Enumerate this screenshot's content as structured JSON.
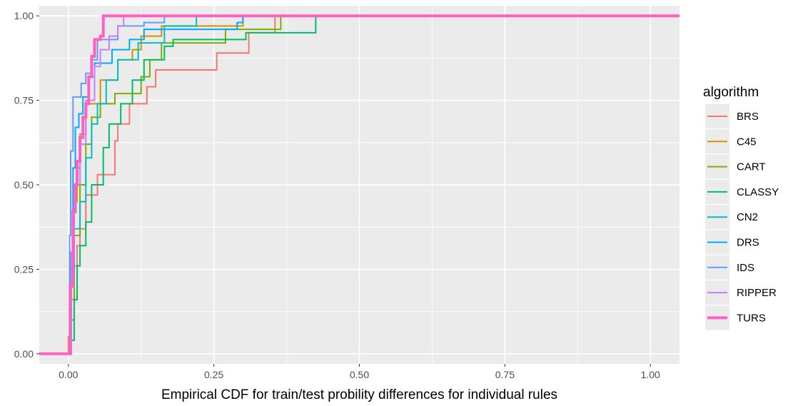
{
  "chart_data": {
    "type": "line",
    "subtype": "step-ecdf",
    "title": "",
    "xlabel": "Empirical CDF for train/test probility differences for individual rules",
    "ylabel": "",
    "xlim": [
      -0.05,
      1.05
    ],
    "ylim": [
      -0.03,
      1.03
    ],
    "xticks": [
      0,
      0.25,
      0.5,
      0.75,
      1
    ],
    "xtick_labels": [
      "0.00",
      "0.25",
      "0.50",
      "0.75",
      "1.00"
    ],
    "yticks": [
      0,
      0.25,
      0.5,
      0.75,
      1
    ],
    "ytick_labels": [
      "0.00",
      "0.25",
      "0.50",
      "0.75",
      "1.00"
    ],
    "grid": true,
    "background": "#ebebeb",
    "legend": {
      "title": "algorithm",
      "placement": "right"
    },
    "series": [
      {
        "name": "BRS",
        "color": "#F8766D",
        "points": [
          [
            -0.05,
            0
          ],
          [
            0,
            0
          ],
          [
            0,
            0.05
          ],
          [
            0.005,
            0.16
          ],
          [
            0.01,
            0.26
          ],
          [
            0.015,
            0.32
          ],
          [
            0.02,
            0.37
          ],
          [
            0.03,
            0.47
          ],
          [
            0.05,
            0.53
          ],
          [
            0.08,
            0.63
          ],
          [
            0.085,
            0.68
          ],
          [
            0.105,
            0.74
          ],
          [
            0.135,
            0.79
          ],
          [
            0.15,
            0.84
          ],
          [
            0.255,
            0.89
          ],
          [
            0.31,
            0.95
          ],
          [
            0.355,
            1
          ],
          [
            1.05,
            1
          ]
        ]
      },
      {
        "name": "C45",
        "color": "#CD9600",
        "points": [
          [
            -0.05,
            0
          ],
          [
            0,
            0
          ],
          [
            0.005,
            0.3
          ],
          [
            0.01,
            0.45
          ],
          [
            0.015,
            0.55
          ],
          [
            0.02,
            0.65
          ],
          [
            0.03,
            0.74
          ],
          [
            0.055,
            0.81
          ],
          [
            0.085,
            0.87
          ],
          [
            0.11,
            0.9
          ],
          [
            0.125,
            0.94
          ],
          [
            0.16,
            0.97
          ],
          [
            0.26,
            0.97
          ],
          [
            0.3,
            1
          ],
          [
            1.05,
            1
          ]
        ]
      },
      {
        "name": "CART",
        "color": "#7CAE00",
        "points": [
          [
            -0.05,
            0
          ],
          [
            0,
            0
          ],
          [
            0.005,
            0.1
          ],
          [
            0.01,
            0.35
          ],
          [
            0.02,
            0.5
          ],
          [
            0.03,
            0.62
          ],
          [
            0.04,
            0.7
          ],
          [
            0.055,
            0.74
          ],
          [
            0.08,
            0.77
          ],
          [
            0.125,
            0.82
          ],
          [
            0.14,
            0.87
          ],
          [
            0.16,
            0.92
          ],
          [
            0.27,
            0.96
          ],
          [
            0.365,
            1
          ],
          [
            1.05,
            1
          ]
        ]
      },
      {
        "name": "CLASSY",
        "color": "#00BE67",
        "points": [
          [
            -0.05,
            0
          ],
          [
            0,
            0
          ],
          [
            0.005,
            0.04
          ],
          [
            0.01,
            0.16
          ],
          [
            0.015,
            0.26
          ],
          [
            0.02,
            0.32
          ],
          [
            0.03,
            0.39
          ],
          [
            0.04,
            0.5
          ],
          [
            0.06,
            0.61
          ],
          [
            0.07,
            0.68
          ],
          [
            0.09,
            0.74
          ],
          [
            0.11,
            0.81
          ],
          [
            0.13,
            0.87
          ],
          [
            0.165,
            0.91
          ],
          [
            0.18,
            0.93
          ],
          [
            0.305,
            0.95
          ],
          [
            0.425,
            1
          ],
          [
            1.05,
            1
          ]
        ]
      },
      {
        "name": "CN2",
        "color": "#00BFC4",
        "points": [
          [
            -0.05,
            0
          ],
          [
            0,
            0
          ],
          [
            0.005,
            0.23
          ],
          [
            0.01,
            0.37
          ],
          [
            0.02,
            0.45
          ],
          [
            0.03,
            0.58
          ],
          [
            0.04,
            0.68
          ],
          [
            0.05,
            0.74
          ],
          [
            0.065,
            0.81
          ],
          [
            0.085,
            0.87
          ],
          [
            0.12,
            0.92
          ],
          [
            0.165,
            0.97
          ],
          [
            0.22,
            1
          ],
          [
            1.05,
            1
          ]
        ]
      },
      {
        "name": "DRS",
        "color": "#00A9FF",
        "points": [
          [
            -0.05,
            0
          ],
          [
            0,
            0
          ],
          [
            0.003,
            0.3
          ],
          [
            0.008,
            0.55
          ],
          [
            0.012,
            0.67
          ],
          [
            0.018,
            0.71
          ],
          [
            0.025,
            0.76
          ],
          [
            0.035,
            0.82
          ],
          [
            0.045,
            0.86
          ],
          [
            0.075,
            0.9
          ],
          [
            0.105,
            0.93
          ],
          [
            0.13,
            0.96
          ],
          [
            0.29,
            0.98
          ],
          [
            0.3,
            1
          ],
          [
            1.05,
            1
          ]
        ]
      },
      {
        "name": "IDS",
        "color": "#619CFF",
        "points": [
          [
            -0.05,
            0
          ],
          [
            0,
            0
          ],
          [
            0.002,
            0.35
          ],
          [
            0.004,
            0.6
          ],
          [
            0.008,
            0.76
          ],
          [
            0.022,
            0.8
          ],
          [
            0.03,
            0.83
          ],
          [
            0.04,
            0.87
          ],
          [
            0.05,
            0.93
          ],
          [
            0.085,
            0.97
          ],
          [
            0.13,
            0.98
          ],
          [
            0.165,
            1
          ],
          [
            1.05,
            1
          ]
        ]
      },
      {
        "name": "RIPPER",
        "color": "#C77CFF",
        "points": [
          [
            -0.05,
            0
          ],
          [
            0,
            0
          ],
          [
            0.005,
            0.3
          ],
          [
            0.01,
            0.5
          ],
          [
            0.02,
            0.62
          ],
          [
            0.03,
            0.75
          ],
          [
            0.045,
            0.85
          ],
          [
            0.055,
            0.9
          ],
          [
            0.07,
            0.94
          ],
          [
            0.085,
            0.97
          ],
          [
            0.095,
            1
          ],
          [
            1.05,
            1
          ]
        ]
      },
      {
        "name": "TURS",
        "color": "#FF61C3",
        "line_width": "thick",
        "points": [
          [
            -0.05,
            0
          ],
          [
            0,
            0
          ],
          [
            0.003,
            0.2
          ],
          [
            0.008,
            0.42
          ],
          [
            0.012,
            0.5
          ],
          [
            0.015,
            0.57
          ],
          [
            0.02,
            0.64
          ],
          [
            0.025,
            0.7
          ],
          [
            0.03,
            0.74
          ],
          [
            0.035,
            0.82
          ],
          [
            0.04,
            0.88
          ],
          [
            0.045,
            0.93
          ],
          [
            0.055,
            0.94
          ],
          [
            0.06,
            1
          ],
          [
            1.05,
            1
          ]
        ]
      }
    ]
  }
}
